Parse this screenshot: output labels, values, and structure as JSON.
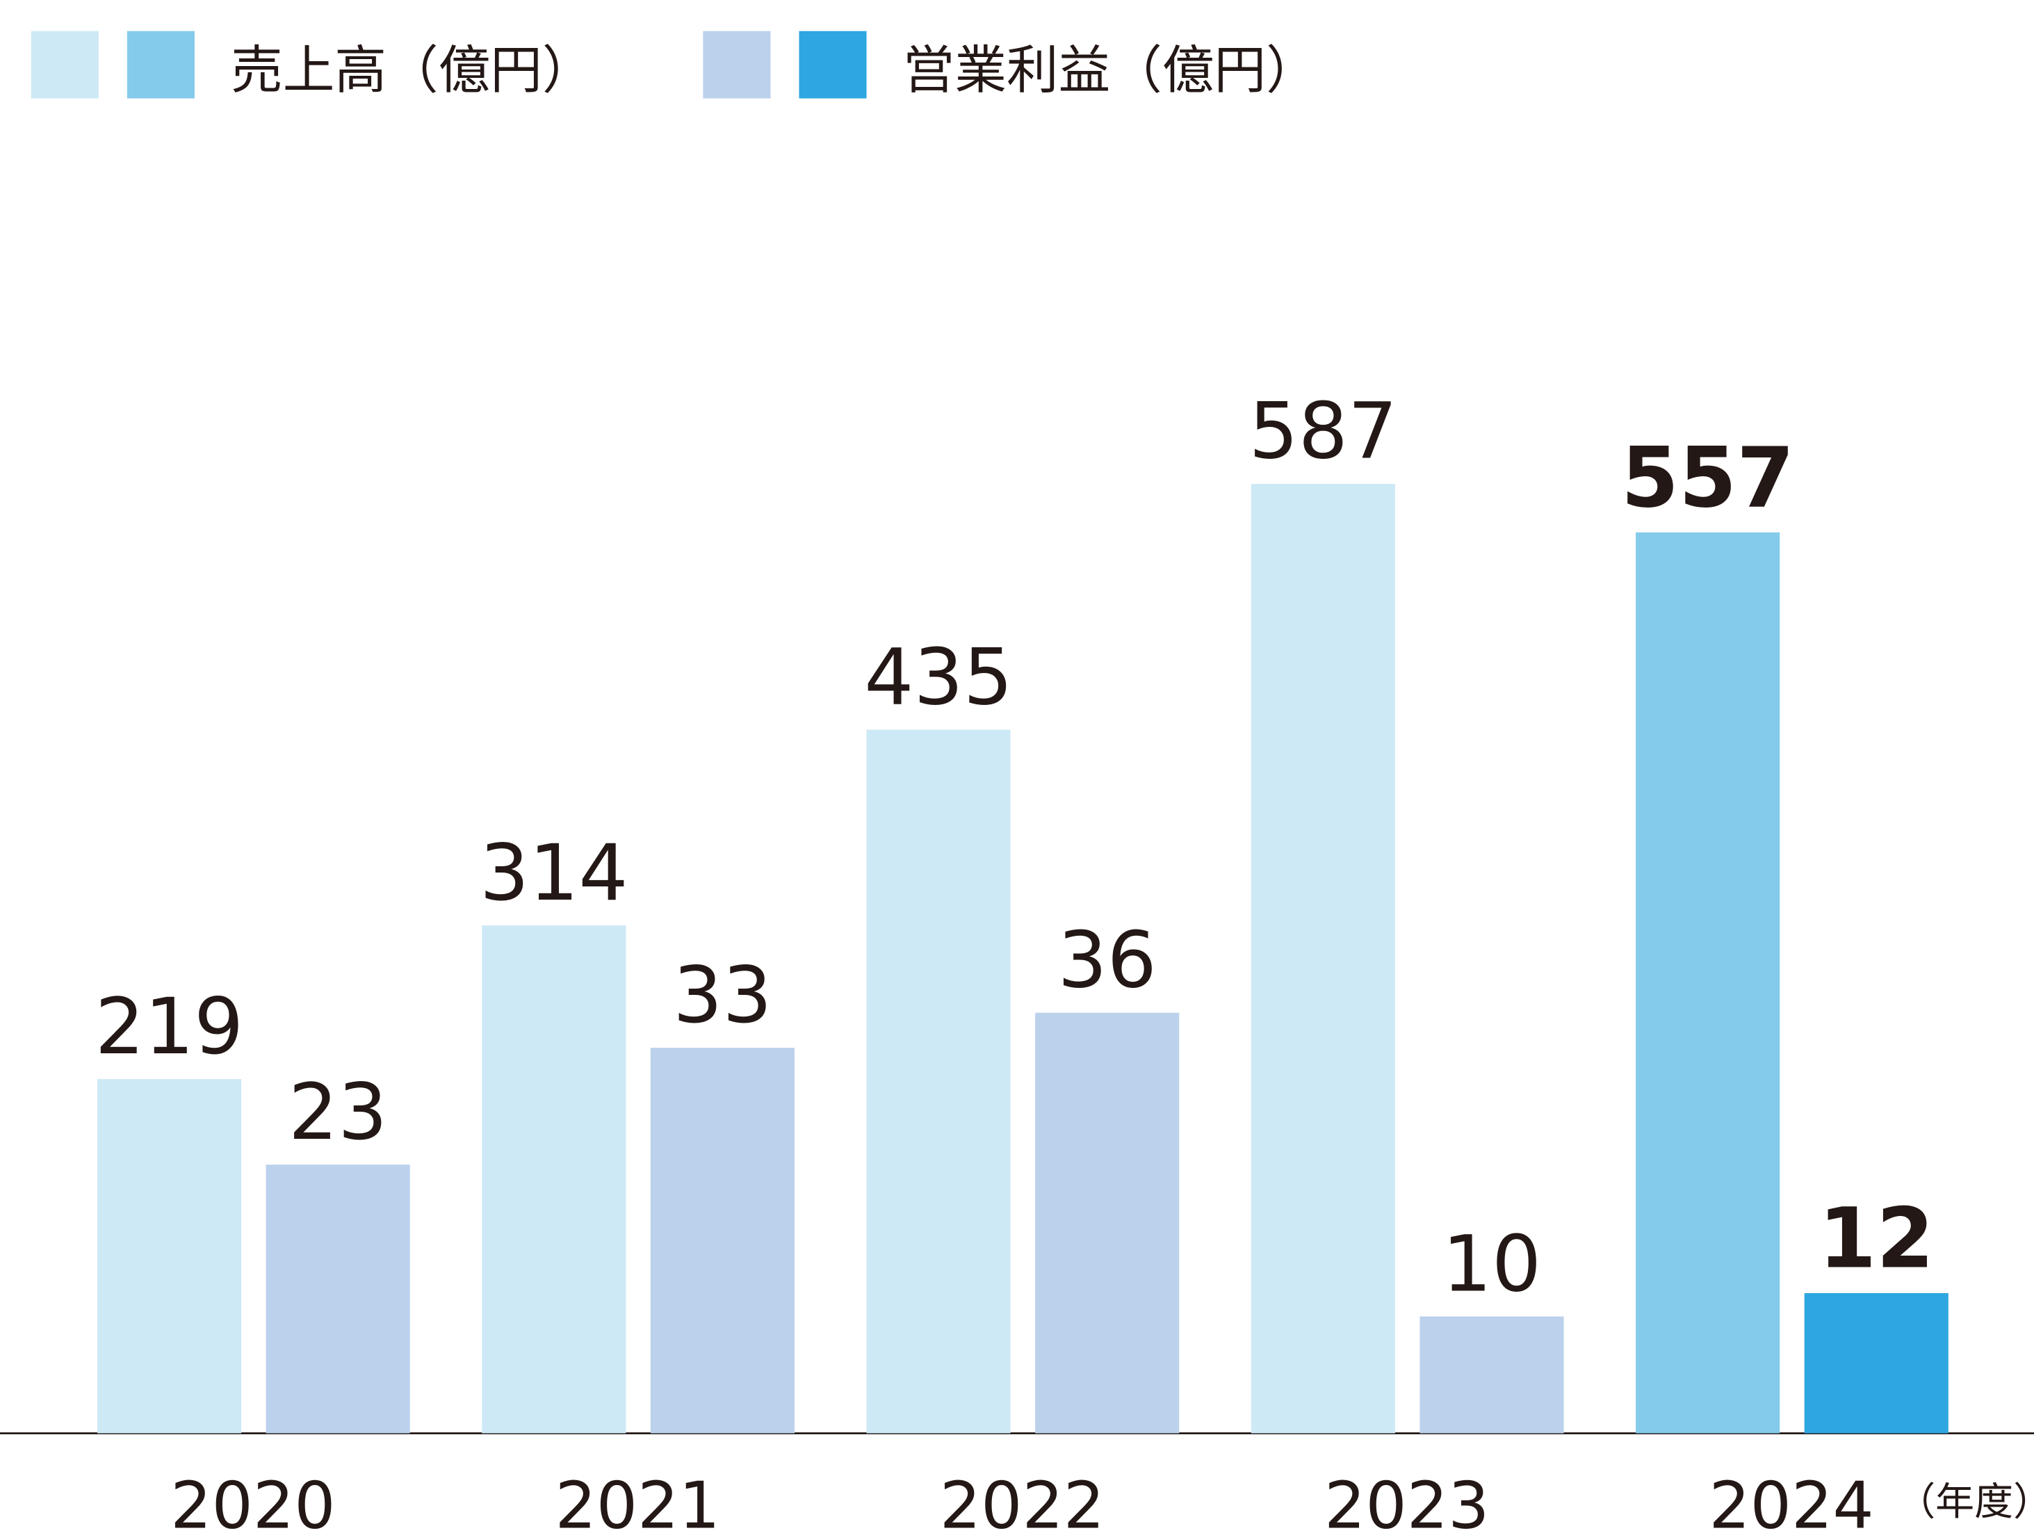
{
  "chart_data": {
    "type": "bar",
    "categories": [
      "2020",
      "2021",
      "2022",
      "2023",
      "2024"
    ],
    "x_label": "（年度）",
    "series": [
      {
        "name": "売上高（億円）",
        "colors": [
          "#cde9f6",
          "#cde9f6",
          "#cde9f6",
          "#cde9f6",
          "#84caeb"
        ],
        "values": [
          219,
          314,
          435,
          587,
          557
        ]
      },
      {
        "name": "営業利益（億円）",
        "colors": [
          "#bbd1ec",
          "#bbd1ec",
          "#bbd1ec",
          "#bbd1ec",
          "#2ea6e0"
        ],
        "values": [
          23,
          33,
          36,
          10,
          12
        ],
        "axis": "y2"
      }
    ],
    "ylim": [
      0,
      650
    ],
    "y2lim": [
      0,
      90
    ]
  }
}
